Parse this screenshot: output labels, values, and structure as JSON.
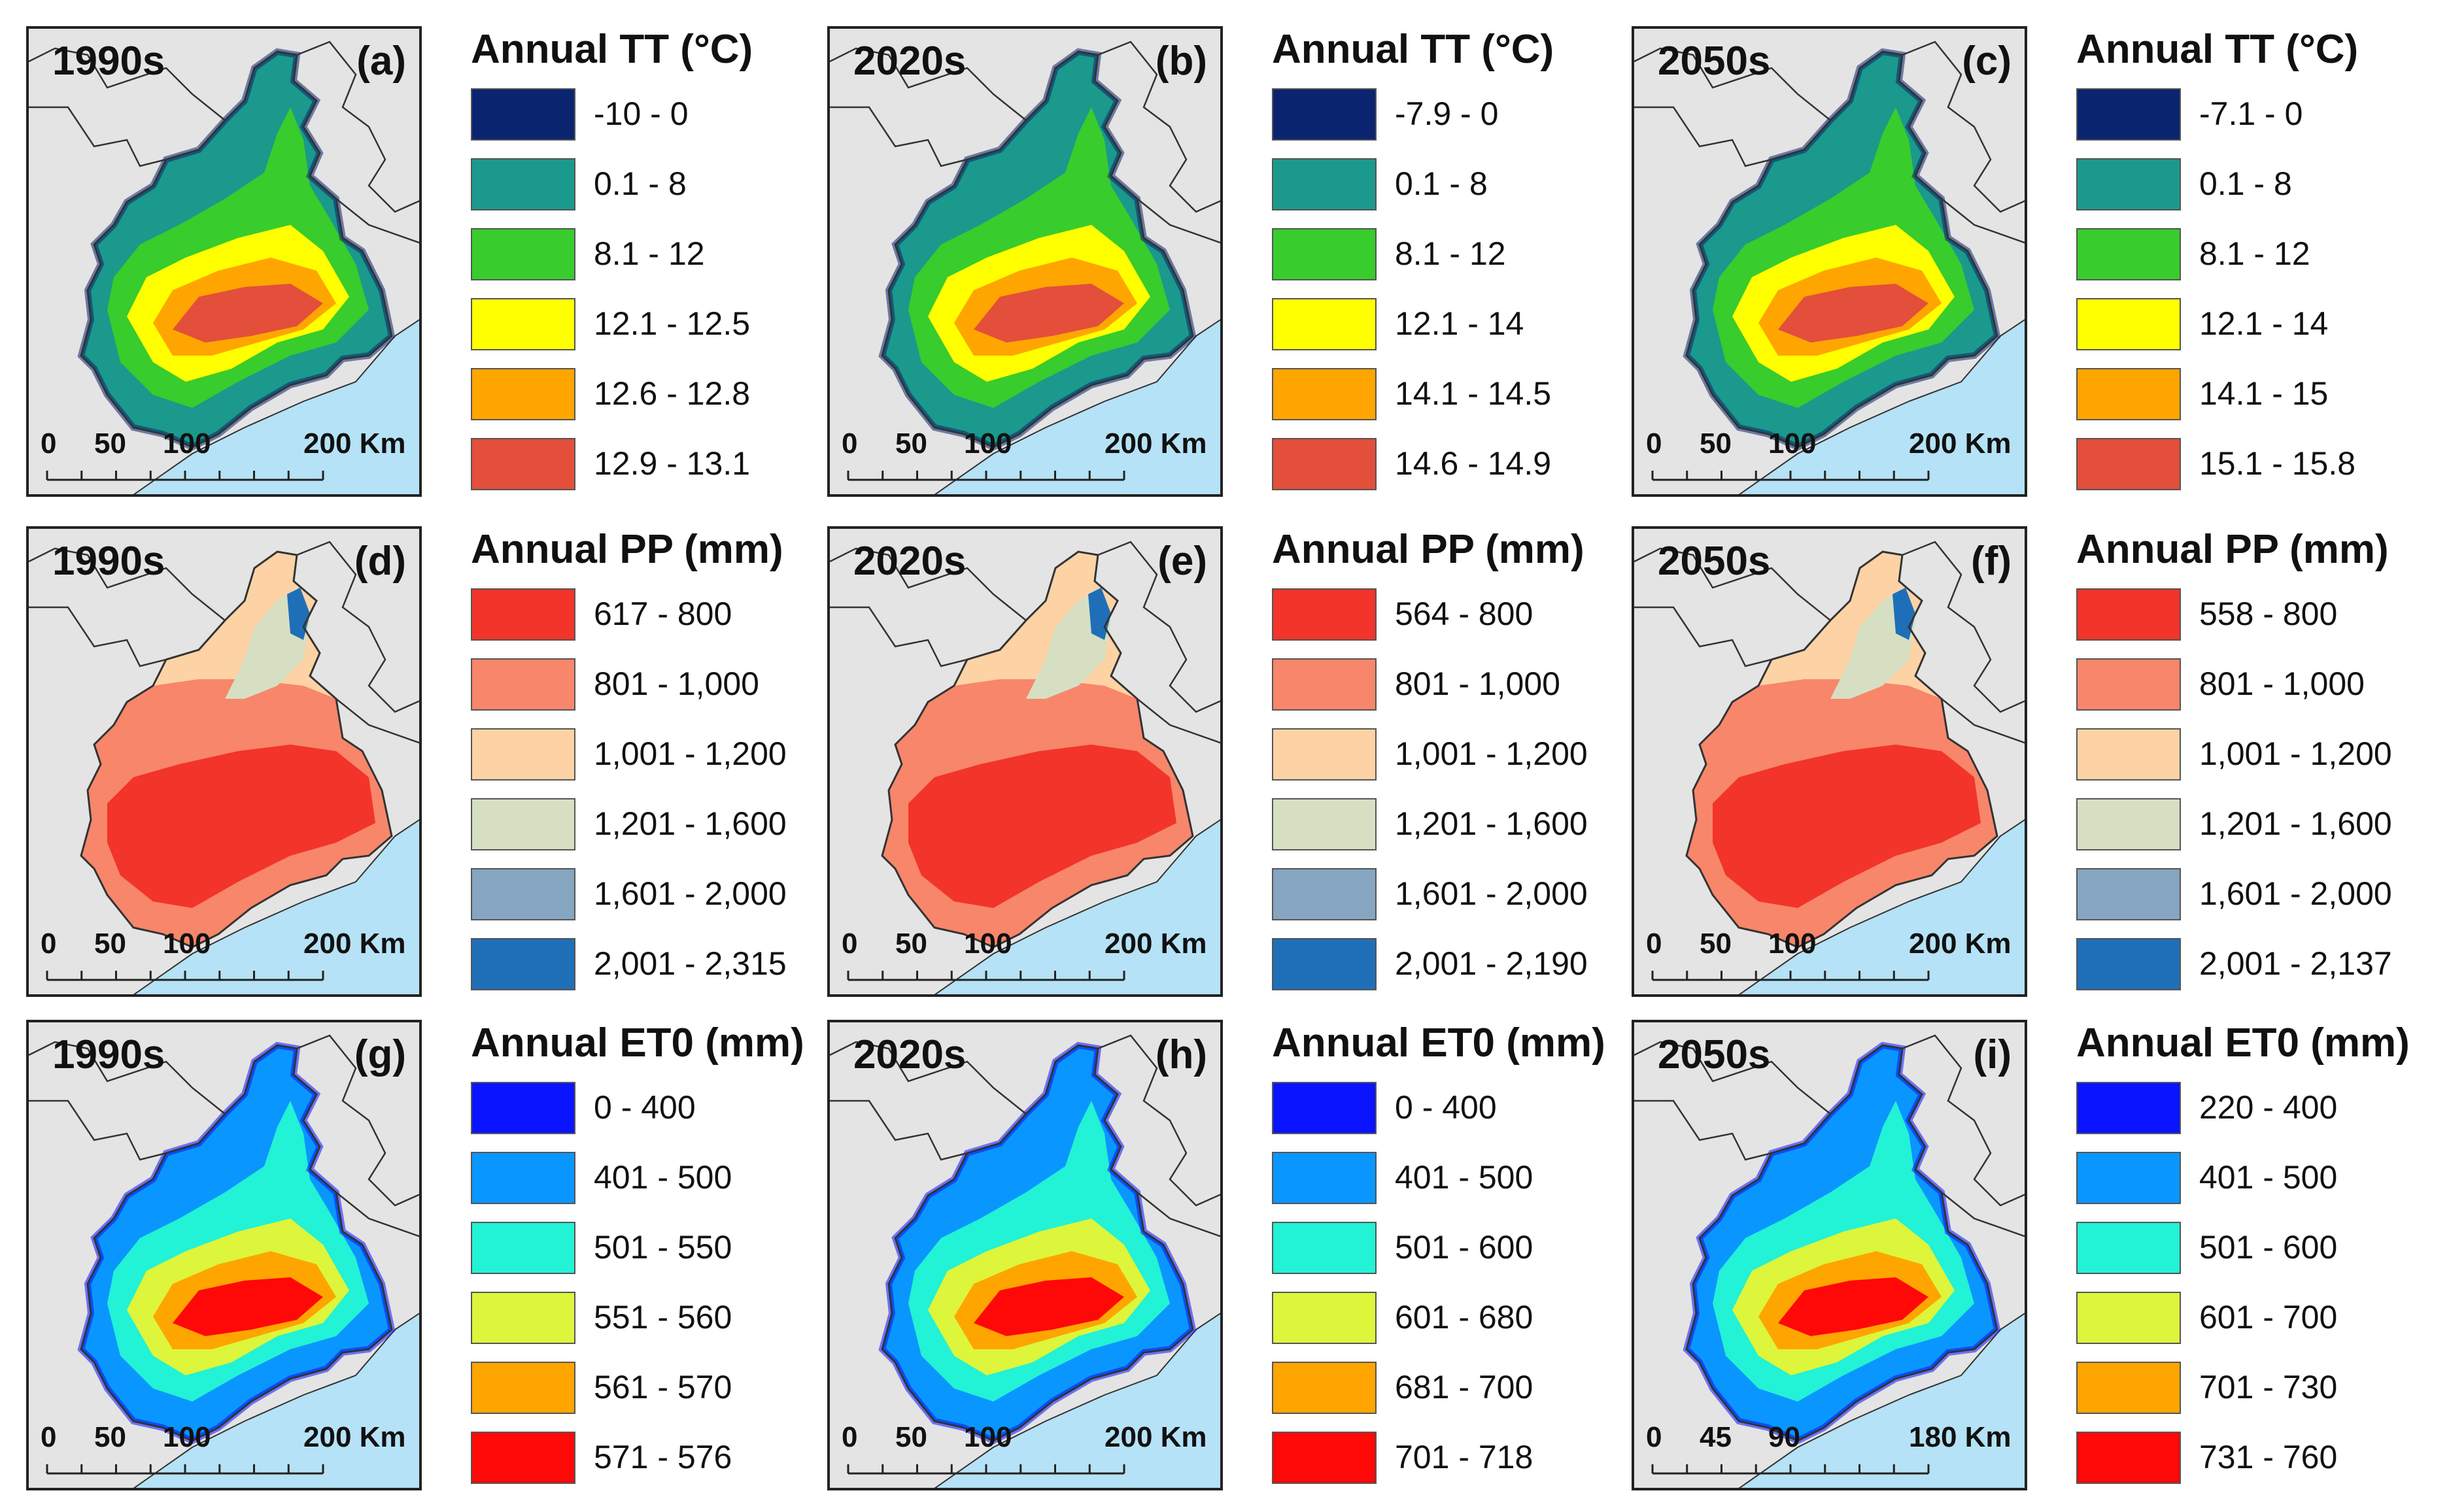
{
  "map_scalebar": {
    "standard": {
      "ticks": [
        "0",
        "50",
        "100",
        "200 Km"
      ]
    },
    "panel_i": {
      "ticks": [
        "0",
        "45",
        "90",
        "180 Km"
      ]
    }
  },
  "sea_color": "#b5e2f6",
  "background_color": "#e4e4e4",
  "boundary_color": "#333333",
  "panels": [
    {
      "id": "a",
      "era": "1990s",
      "letter": "(a)",
      "variable": "TT",
      "legend_title": "Annual TT (°C)",
      "classes": [
        {
          "range": "-10 - 0",
          "color": "#0a2470"
        },
        {
          "range": "0.1 - 8",
          "color": "#1b998d"
        },
        {
          "range": "8.1 - 12",
          "color": "#38cc2c"
        },
        {
          "range": "12.1 - 12.5",
          "color": "#ffff00"
        },
        {
          "range": "12.6 - 12.8",
          "color": "#ffa500"
        },
        {
          "range": "12.9 - 13.1",
          "color": "#e34f3a"
        }
      ],
      "scalebar": "standard"
    },
    {
      "id": "b",
      "era": "2020s",
      "letter": "(b)",
      "variable": "TT",
      "legend_title": "Annual TT (°C)",
      "classes": [
        {
          "range": "-7.9 - 0",
          "color": "#0a2470"
        },
        {
          "range": "0.1 - 8",
          "color": "#1b998d"
        },
        {
          "range": "8.1 - 12",
          "color": "#38cc2c"
        },
        {
          "range": "12.1 - 14",
          "color": "#ffff00"
        },
        {
          "range": "14.1 - 14.5",
          "color": "#ffa500"
        },
        {
          "range": "14.6 - 14.9",
          "color": "#e34f3a"
        }
      ],
      "scalebar": "standard"
    },
    {
      "id": "c",
      "era": "2050s",
      "letter": "(c)",
      "variable": "TT",
      "legend_title": "Annual TT (°C)",
      "classes": [
        {
          "range": "-7.1 - 0",
          "color": "#0a2470"
        },
        {
          "range": "0.1 - 8",
          "color": "#1b998d"
        },
        {
          "range": "8.1 - 12",
          "color": "#38cc2c"
        },
        {
          "range": "12.1 - 14",
          "color": "#ffff00"
        },
        {
          "range": "14.1 - 15",
          "color": "#ffa500"
        },
        {
          "range": "15.1 - 15.8",
          "color": "#e34f3a"
        }
      ],
      "scalebar": "standard"
    },
    {
      "id": "d",
      "era": "1990s",
      "letter": "(d)",
      "variable": "PP",
      "legend_title": "Annual PP (mm)",
      "classes": [
        {
          "range": "617 - 800",
          "color": "#f2342a"
        },
        {
          "range": "801 - 1,000",
          "color": "#f8866a"
        },
        {
          "range": "1,001 - 1,200",
          "color": "#fdd3a5"
        },
        {
          "range": "1,201 - 1,600",
          "color": "#d7dfc3"
        },
        {
          "range": "1,601 - 2,000",
          "color": "#85a5c0"
        },
        {
          "range": "2,001 - 2,315",
          "color": "#1f6fb8"
        }
      ],
      "scalebar": "standard"
    },
    {
      "id": "e",
      "era": "2020s",
      "letter": "(e)",
      "variable": "PP",
      "legend_title": "Annual PP (mm)",
      "classes": [
        {
          "range": "564 - 800",
          "color": "#f2342a"
        },
        {
          "range": "801 - 1,000",
          "color": "#f8866a"
        },
        {
          "range": "1,001 - 1,200",
          "color": "#fdd3a5"
        },
        {
          "range": "1,201 - 1,600",
          "color": "#d7dfc3"
        },
        {
          "range": "1,601 - 2,000",
          "color": "#85a5c0"
        },
        {
          "range": "2,001 - 2,190",
          "color": "#1f6fb8"
        }
      ],
      "scalebar": "standard"
    },
    {
      "id": "f",
      "era": "2050s",
      "letter": "(f)",
      "variable": "PP",
      "legend_title": "Annual PP (mm)",
      "classes": [
        {
          "range": "558 - 800",
          "color": "#f2342a"
        },
        {
          "range": "801 - 1,000",
          "color": "#f8866a"
        },
        {
          "range": "1,001 - 1,200",
          "color": "#fdd3a5"
        },
        {
          "range": "1,201 - 1,600",
          "color": "#d7dfc3"
        },
        {
          "range": "1,601 - 2,000",
          "color": "#85a5c0"
        },
        {
          "range": "2,001 - 2,137",
          "color": "#1f6fb8"
        }
      ],
      "scalebar": "standard"
    },
    {
      "id": "g",
      "era": "1990s",
      "letter": "(g)",
      "variable": "ET0",
      "legend_title": "Annual ET0 (mm)",
      "classes": [
        {
          "range": "0 - 400",
          "color": "#0a14ff"
        },
        {
          "range": "401 - 500",
          "color": "#0a96ff"
        },
        {
          "range": "501 - 550",
          "color": "#22f2d5"
        },
        {
          "range": "551 - 560",
          "color": "#ddf53a"
        },
        {
          "range": "561 - 570",
          "color": "#ffa500"
        },
        {
          "range": "571 - 576",
          "color": "#ff0808"
        }
      ],
      "scalebar": "standard"
    },
    {
      "id": "h",
      "era": "2020s",
      "letter": "(h)",
      "variable": "ET0",
      "legend_title": "Annual ET0 (mm)",
      "classes": [
        {
          "range": "0 - 400",
          "color": "#0a14ff"
        },
        {
          "range": "401 - 500",
          "color": "#0a96ff"
        },
        {
          "range": "501 - 600",
          "color": "#22f2d5"
        },
        {
          "range": "601 - 680",
          "color": "#ddf53a"
        },
        {
          "range": "681 - 700",
          "color": "#ffa500"
        },
        {
          "range": "701 - 718",
          "color": "#ff0808"
        }
      ],
      "scalebar": "standard"
    },
    {
      "id": "i",
      "era": "2050s",
      "letter": "(i)",
      "variable": "ET0",
      "legend_title": "Annual ET0 (mm)",
      "classes": [
        {
          "range": "220 - 400",
          "color": "#0a14ff"
        },
        {
          "range": "401 - 500",
          "color": "#0a96ff"
        },
        {
          "range": "501 - 600",
          "color": "#22f2d5"
        },
        {
          "range": "601 - 700",
          "color": "#ddf53a"
        },
        {
          "range": "701 - 730",
          "color": "#ffa500"
        },
        {
          "range": "731 - 760",
          "color": "#ff0808"
        }
      ],
      "scalebar": "panel_i"
    }
  ]
}
